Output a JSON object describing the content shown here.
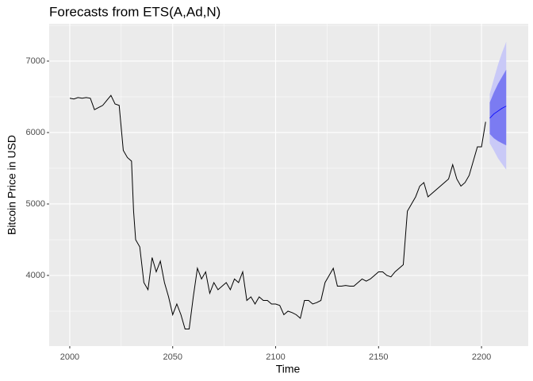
{
  "chart_data": {
    "type": "line",
    "title": "Forecasts from ETS(A,Ad,N)",
    "x_label": "Time",
    "y_label": "Bitcoin Price in USD",
    "x": [
      2000,
      2002,
      2004,
      2006,
      2008,
      2010,
      2012,
      2014,
      2016,
      2018,
      2020,
      2022,
      2024,
      2026,
      2028,
      2030,
      2031,
      2032,
      2034,
      2036,
      2038,
      2040,
      2042,
      2044,
      2046,
      2048,
      2050,
      2052,
      2054,
      2056,
      2058,
      2060,
      2062,
      2064,
      2066,
      2068,
      2070,
      2072,
      2074,
      2076,
      2078,
      2080,
      2082,
      2084,
      2086,
      2088,
      2090,
      2092,
      2094,
      2096,
      2098,
      2100,
      2102,
      2104,
      2106,
      2108,
      2110,
      2112,
      2114,
      2116,
      2118,
      2120,
      2122,
      2124,
      2126,
      2128,
      2130,
      2132,
      2134,
      2136,
      2138,
      2140,
      2142,
      2144,
      2146,
      2148,
      2150,
      2152,
      2154,
      2156,
      2158,
      2160,
      2162,
      2164,
      2166,
      2168,
      2170,
      2172,
      2174,
      2176,
      2178,
      2180,
      2182,
      2184,
      2186,
      2188,
      2190,
      2192,
      2194,
      2196,
      2198,
      2200,
      2202
    ],
    "values": [
      6480,
      6470,
      6490,
      6480,
      6490,
      6480,
      6320,
      6350,
      6380,
      6450,
      6520,
      6400,
      6380,
      5750,
      5650,
      5600,
      4900,
      4500,
      4400,
      3900,
      3800,
      4250,
      4050,
      4200,
      3900,
      3700,
      3450,
      3600,
      3450,
      3250,
      3250,
      3700,
      4100,
      3950,
      4050,
      3750,
      3900,
      3800,
      3850,
      3900,
      3800,
      3950,
      3900,
      4050,
      3650,
      3700,
      3600,
      3700,
      3650,
      3650,
      3600,
      3600,
      3580,
      3450,
      3500,
      3480,
      3450,
      3400,
      3650,
      3650,
      3600,
      3620,
      3650,
      3900,
      4000,
      4100,
      3850,
      3850,
      3860,
      3850,
      3850,
      3900,
      3950,
      3920,
      3950,
      4000,
      4050,
      4050,
      4000,
      3980,
      4050,
      4100,
      4150,
      4900,
      5000,
      5100,
      5250,
      5300,
      5100,
      5150,
      5200,
      5250,
      5300,
      5350,
      5550,
      5350,
      5250,
      5300,
      5400,
      5600,
      5800,
      5800,
      6150
    ],
    "color": "#000000",
    "forecast": {
      "x": [
        2204,
        2206,
        2208,
        2210,
        2212
      ],
      "mean": [
        6200,
        6260,
        6300,
        6340,
        6370
      ],
      "lo80": [
        5980,
        5920,
        5880,
        5850,
        5820
      ],
      "hi80": [
        6420,
        6560,
        6680,
        6780,
        6880
      ],
      "lo95": [
        5850,
        5750,
        5640,
        5560,
        5480
      ],
      "hi95": [
        6540,
        6750,
        6950,
        7120,
        7270
      ],
      "color": "#0000ff",
      "color80": "#7b7bf2",
      "color95": "#c9c9f7"
    },
    "xlim": [
      1990,
      2222.7
    ],
    "ylim": [
      3011,
      7522
    ],
    "xticks": [
      2000,
      2050,
      2100,
      2150,
      2200
    ],
    "yticks": [
      4000,
      5000,
      6000,
      7000
    ],
    "grid": true
  }
}
